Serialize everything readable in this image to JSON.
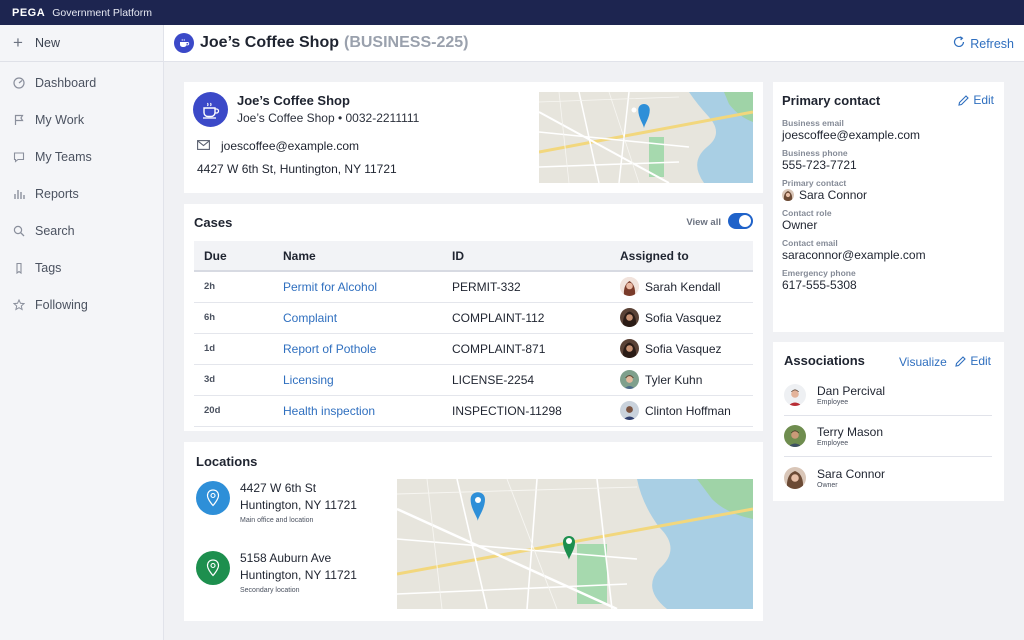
{
  "topbar": {
    "brand": "PEGA",
    "product": "Government Platform"
  },
  "sidebar": {
    "new_label": "New",
    "items": [
      {
        "label": "Dashboard",
        "icon": "dashboard-icon"
      },
      {
        "label": "My Work",
        "icon": "flag-icon"
      },
      {
        "label": "My Teams",
        "icon": "chat-icon"
      },
      {
        "label": "Reports",
        "icon": "bar-chart-icon"
      },
      {
        "label": "Search",
        "icon": "search-icon"
      },
      {
        "label": "Tags",
        "icon": "tag-icon"
      },
      {
        "label": "Following",
        "icon": "star-icon"
      }
    ]
  },
  "header": {
    "title": "Joe’s Coffee Shop",
    "case_id": "(BUSINESS-225)",
    "refresh_label": "Refresh"
  },
  "business": {
    "name": "Joe’s Coffee Shop",
    "subtitle": "Joe’s Coffee Shop  •  0032-2211111",
    "email": "joescoffee@example.com",
    "address": "4427 W 6th St,  Huntington, NY 11721"
  },
  "cases": {
    "title": "Cases",
    "view_all_label": "View all",
    "columns": [
      "Due",
      "Name",
      "ID",
      "Assigned to"
    ],
    "rows": [
      {
        "due": "2h",
        "name": "Permit for Alcohol",
        "id": "PERMIT-332",
        "assigned": "Sarah Kendall"
      },
      {
        "due": "6h",
        "name": "Complaint",
        "id": "COMPLAINT-112",
        "assigned": "Sofia Vasquez"
      },
      {
        "due": "1d",
        "name": "Report of Pothole",
        "id": "COMPLAINT-871",
        "assigned": "Sofia Vasquez"
      },
      {
        "due": "3d",
        "name": "Licensing",
        "id": "LICENSE-2254",
        "assigned": "Tyler Kuhn"
      },
      {
        "due": "20d",
        "name": "Health inspection",
        "id": "INSPECTION-11298",
        "assigned": "Clinton Hoffman"
      }
    ]
  },
  "locations": {
    "title": "Locations",
    "items": [
      {
        "line1": "4427 W 6th St",
        "line2": "Huntington, NY 11721",
        "note": "Main office and location",
        "color": "#2e8fd8"
      },
      {
        "line1": "5158 Auburn Ave",
        "line2": "Huntington, NY 11721",
        "note": "Secondary location",
        "color": "#1d8f4e"
      }
    ]
  },
  "primary_contact": {
    "title": "Primary contact",
    "edit_label": "Edit",
    "fields": [
      {
        "label": "Business email",
        "value": "joescoffee@example.com"
      },
      {
        "label": "Business phone",
        "value": "555-723-7721"
      },
      {
        "label": "Primary contact",
        "value": "Sara Connor"
      },
      {
        "label": "Contact role",
        "value": "Owner"
      },
      {
        "label": "Contact email",
        "value": "saraconnor@example.com"
      },
      {
        "label": "Emergency phone",
        "value": "617-555-5308"
      }
    ]
  },
  "associations": {
    "title": "Associations",
    "visualize_label": "Visualize",
    "edit_label": "Edit",
    "items": [
      {
        "name": "Dan Percival",
        "role": "Employee"
      },
      {
        "name": "Terry Mason",
        "role": "Employee"
      },
      {
        "name": "Sara Connor",
        "role": "Owner"
      }
    ]
  }
}
